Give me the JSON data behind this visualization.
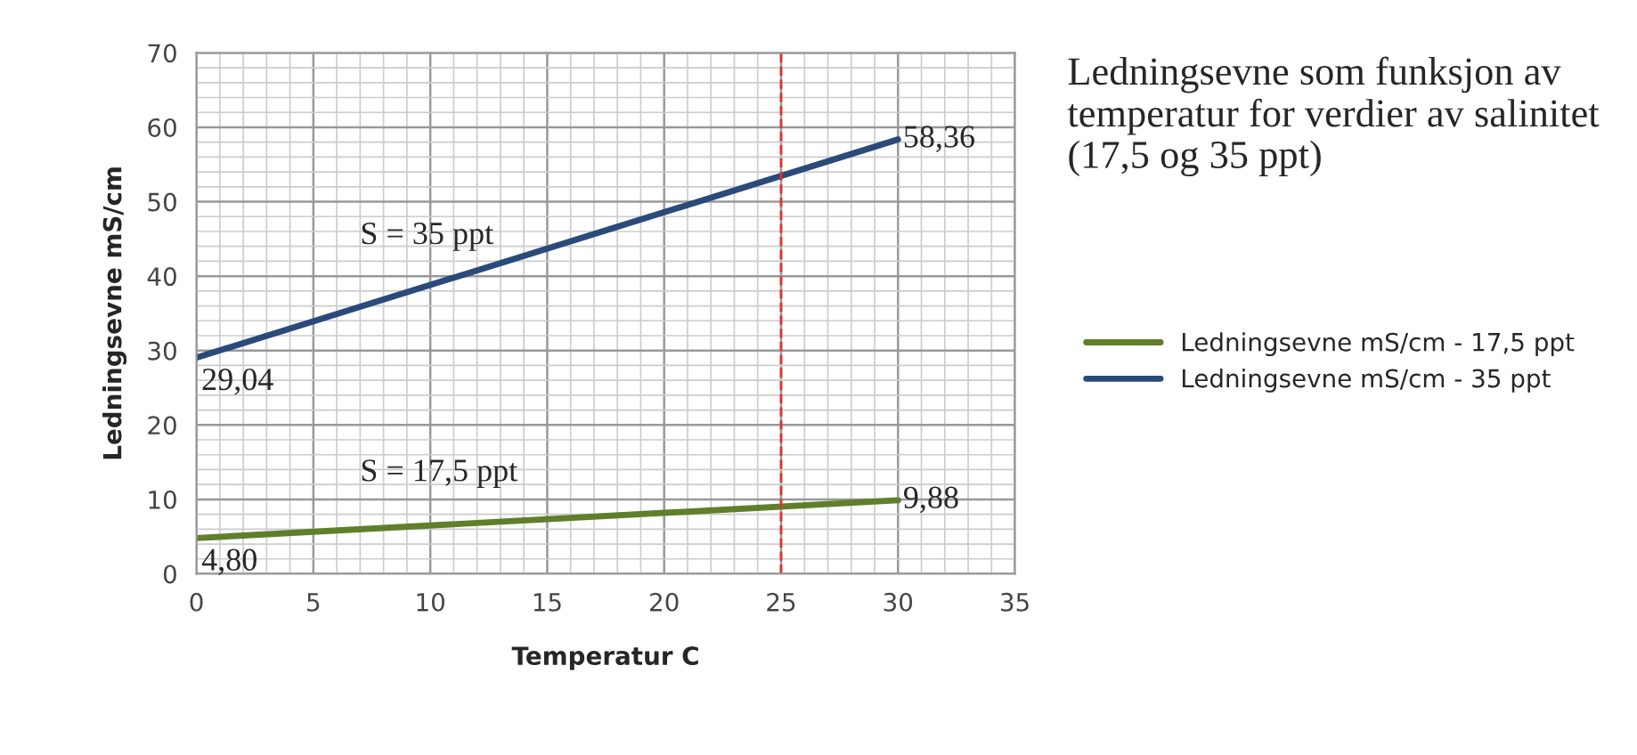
{
  "chart_data": {
    "type": "line",
    "title": "Ledningsevne som funksjon av temperatur for verdier av salinitet (17,5 og 35 ppt)",
    "xlabel": "Temperatur C",
    "ylabel": "Ledningsevne mS/cm",
    "x": [
      0,
      30
    ],
    "series": [
      {
        "name": "Ledningsevne mS/cm - 17,5 ppt",
        "color": "#5f7f2a",
        "values": [
          4.8,
          9.88
        ],
        "value_labels": [
          "4,80",
          "9,88"
        ]
      },
      {
        "name": "Ledningsevne mS/cm - 35 ppt",
        "color": "#2a4a7a",
        "values": [
          29.04,
          58.36
        ],
        "value_labels": [
          "29,04",
          "58,36"
        ]
      }
    ],
    "annotations": [
      "S = 35 ppt",
      "S = 17,5 ppt"
    ],
    "ref_lines": [
      {
        "axis": "x",
        "value": 25,
        "color": "#e03030",
        "line_style": "dashed"
      }
    ],
    "xlim": [
      0,
      35
    ],
    "xticks": [
      0,
      5,
      10,
      15,
      20,
      25,
      30,
      35
    ],
    "ylim": [
      0,
      70
    ],
    "yticks": [
      0,
      10,
      20,
      30,
      40,
      50,
      60,
      70
    ],
    "grid": true,
    "legend": "right",
    "marker": "none",
    "line_style": "solid"
  }
}
